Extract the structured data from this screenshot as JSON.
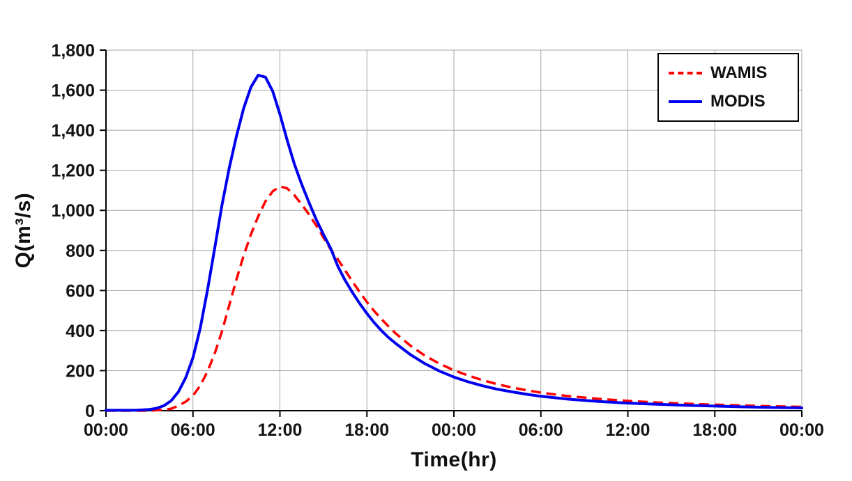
{
  "chart_data": {
    "type": "line",
    "title": "",
    "xlabel": "Time(hr)",
    "ylabel": "Q(m³/s)",
    "x_range": [
      0,
      48
    ],
    "x_tick_step": 6,
    "x_tick_labels": [
      "00:00",
      "06:00",
      "12:00",
      "18:00",
      "00:00",
      "06:00",
      "12:00",
      "18:00",
      "00:00"
    ],
    "ylim": [
      0,
      1800
    ],
    "y_tick_step": 200,
    "grid": true,
    "grid_color": "#a3a3a3",
    "axis_color": "#000000",
    "legend_position": "top-right",
    "series": [
      {
        "name": "WAMIS",
        "color": "#FF0000",
        "line_style": "dashed",
        "points": [
          [
            0,
            0
          ],
          [
            3,
            0
          ],
          [
            4,
            5
          ],
          [
            4.5,
            10
          ],
          [
            5,
            25
          ],
          [
            5.5,
            45
          ],
          [
            6,
            75
          ],
          [
            6.5,
            125
          ],
          [
            7,
            195
          ],
          [
            7.5,
            285
          ],
          [
            8,
            395
          ],
          [
            8.5,
            525
          ],
          [
            9,
            655
          ],
          [
            9.5,
            775
          ],
          [
            10,
            880
          ],
          [
            10.5,
            970
          ],
          [
            11,
            1045
          ],
          [
            11.5,
            1095
          ],
          [
            12,
            1120
          ],
          [
            12.5,
            1110
          ],
          [
            13,
            1075
          ],
          [
            13.5,
            1030
          ],
          [
            14,
            980
          ],
          [
            14.5,
            925
          ],
          [
            15,
            865
          ],
          [
            15.5,
            805
          ],
          [
            16,
            755
          ],
          [
            16.5,
            700
          ],
          [
            17,
            645
          ],
          [
            17.5,
            592
          ],
          [
            18,
            542
          ],
          [
            18.5,
            498
          ],
          [
            19,
            458
          ],
          [
            19.5,
            420
          ],
          [
            20,
            385
          ],
          [
            21,
            325
          ],
          [
            22,
            275
          ],
          [
            23,
            235
          ],
          [
            24,
            202
          ],
          [
            25,
            175
          ],
          [
            26,
            152
          ],
          [
            27,
            132
          ],
          [
            28,
            116
          ],
          [
            29,
            102
          ],
          [
            30,
            90
          ],
          [
            32,
            72
          ],
          [
            34,
            59
          ],
          [
            36,
            49
          ],
          [
            38,
            41
          ],
          [
            40,
            35
          ],
          [
            42,
            30
          ],
          [
            44,
            26
          ],
          [
            46,
            22
          ],
          [
            48,
            19
          ]
        ]
      },
      {
        "name": "MODIS",
        "color": "#0000EE",
        "line_style": "solid",
        "points": [
          [
            0,
            2
          ],
          [
            2,
            2
          ],
          [
            3,
            6
          ],
          [
            3.5,
            12
          ],
          [
            4,
            25
          ],
          [
            4.5,
            50
          ],
          [
            5,
            95
          ],
          [
            5.5,
            165
          ],
          [
            6,
            265
          ],
          [
            6.5,
            410
          ],
          [
            7,
            600
          ],
          [
            7.5,
            810
          ],
          [
            8,
            1025
          ],
          [
            8.5,
            1210
          ],
          [
            9,
            1370
          ],
          [
            9.5,
            1510
          ],
          [
            10,
            1615
          ],
          [
            10.5,
            1675
          ],
          [
            11,
            1665
          ],
          [
            11.5,
            1595
          ],
          [
            12,
            1480
          ],
          [
            12.5,
            1350
          ],
          [
            13,
            1230
          ],
          [
            13.5,
            1130
          ],
          [
            14,
            1040
          ],
          [
            14.5,
            955
          ],
          [
            15,
            880
          ],
          [
            15.5,
            810
          ],
          [
            16,
            720
          ],
          [
            16.5,
            650
          ],
          [
            17,
            590
          ],
          [
            17.5,
            535
          ],
          [
            18,
            485
          ],
          [
            18.5,
            440
          ],
          [
            19,
            400
          ],
          [
            19.5,
            365
          ],
          [
            20,
            335
          ],
          [
            21,
            280
          ],
          [
            22,
            235
          ],
          [
            23,
            198
          ],
          [
            24,
            168
          ],
          [
            25,
            144
          ],
          [
            26,
            124
          ],
          [
            27,
            107
          ],
          [
            28,
            94
          ],
          [
            29,
            82
          ],
          [
            30,
            72
          ],
          [
            32,
            57
          ],
          [
            34,
            46
          ],
          [
            36,
            38
          ],
          [
            38,
            32
          ],
          [
            40,
            27
          ],
          [
            42,
            23
          ],
          [
            44,
            19
          ],
          [
            46,
            16
          ],
          [
            48,
            14
          ]
        ]
      }
    ]
  }
}
